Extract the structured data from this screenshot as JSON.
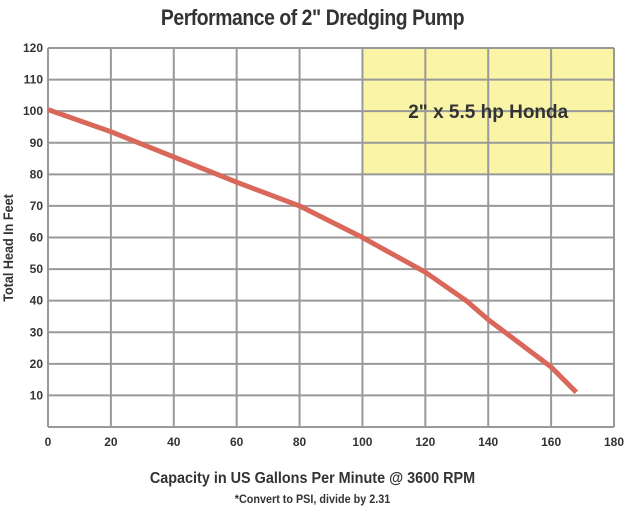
{
  "chart_data": {
    "type": "line",
    "title": "Performance of 2\" Dredging Pump",
    "xlabel": "Capacity in US Gallons Per Minute @ 3600 RPM",
    "ylabel": "Total Head In Feet",
    "note": "*Convert to PSI, divide by 2.31",
    "xlim": [
      0,
      180
    ],
    "ylim": [
      0,
      120
    ],
    "xticks": [
      0,
      20,
      40,
      60,
      80,
      100,
      120,
      140,
      160,
      180
    ],
    "yticks": [
      10,
      20,
      30,
      40,
      50,
      60,
      70,
      80,
      90,
      100,
      110,
      120
    ],
    "grid": true,
    "annotation": {
      "text": "2\" x 5.5 hp Honda",
      "x_range": [
        100,
        180
      ],
      "y_range": [
        80,
        120
      ]
    },
    "series": [
      {
        "name": "2\" x 5.5 hp Honda",
        "x": [
          0,
          20,
          40,
          60,
          80,
          100,
          120,
          133,
          140,
          160,
          168
        ],
        "y": [
          100.5,
          93.5,
          85.5,
          77.5,
          70,
          60,
          49,
          40,
          34,
          19,
          11
        ]
      }
    ],
    "colors": {
      "line": "#d9675a",
      "annotation_fill": "#f9f4a6",
      "grid": "#999999"
    }
  }
}
